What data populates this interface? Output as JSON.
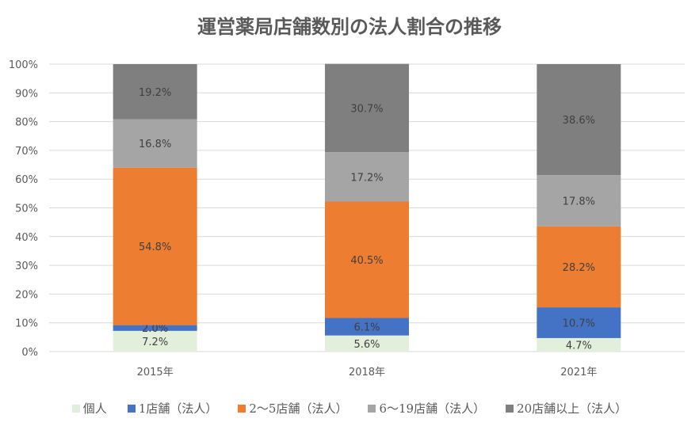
{
  "chart_data": {
    "type": "bar",
    "stacked": true,
    "title": "運営薬局店舗数別の法人割合の推移",
    "categories": [
      "2015年",
      "2018年",
      "2021年"
    ],
    "ylim": [
      0,
      100
    ],
    "yticks": [
      "0%",
      "10%",
      "20%",
      "30%",
      "40%",
      "50%",
      "60%",
      "70%",
      "80%",
      "90%",
      "100%"
    ],
    "grid": true,
    "legend_position": "bottom",
    "series": [
      {
        "name": "個人",
        "values": [
          7.2,
          5.6,
          4.7
        ],
        "labels": [
          "7.2%",
          "5.6%",
          "4.7%"
        ],
        "color": "#E2EFDA"
      },
      {
        "name": "1店舗（法人）",
        "values": [
          2.0,
          6.1,
          10.7
        ],
        "labels": [
          "2.0%",
          "6.1%",
          "10.7%"
        ],
        "color": "#4472C4"
      },
      {
        "name": "2〜5店舗（法人）",
        "values": [
          54.8,
          40.5,
          28.2
        ],
        "labels": [
          "54.8%",
          "40.5%",
          "28.2%"
        ],
        "color": "#ED7D31"
      },
      {
        "name": "6〜19店舗（法人）",
        "values": [
          16.8,
          17.2,
          17.8
        ],
        "labels": [
          "16.8%",
          "17.2%",
          "17.8%"
        ],
        "color": "#A5A5A5"
      },
      {
        "name": "20店舗以上（法人）",
        "values": [
          19.2,
          30.7,
          38.6
        ],
        "labels": [
          "19.2%",
          "30.7%",
          "38.6%"
        ],
        "color": "#7F7F7F"
      }
    ]
  }
}
